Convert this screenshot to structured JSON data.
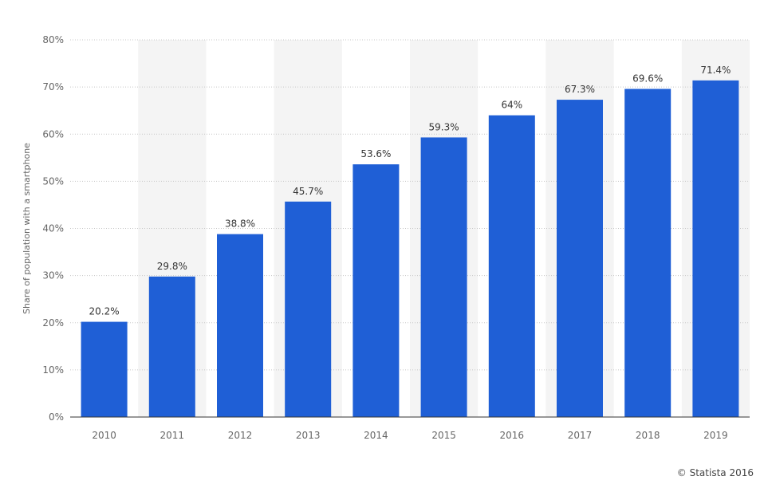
{
  "chart_data": {
    "type": "bar",
    "categories": [
      "2010",
      "2011",
      "2012",
      "2013",
      "2014",
      "2015",
      "2016",
      "2017",
      "2018",
      "2019"
    ],
    "values": [
      20.2,
      29.8,
      38.8,
      45.7,
      53.6,
      59.3,
      64,
      67.3,
      69.6,
      71.4
    ],
    "value_labels": [
      "20.2%",
      "29.8%",
      "38.8%",
      "45.7%",
      "53.6%",
      "59.3%",
      "64%",
      "67.3%",
      "69.6%",
      "71.4%"
    ],
    "ylabel": "Share of population with a smartphone",
    "xlabel": "",
    "ylim": [
      0,
      80
    ],
    "yticks": [
      0,
      10,
      20,
      30,
      40,
      50,
      60,
      70,
      80
    ],
    "ytick_labels": [
      "0%",
      "10%",
      "20%",
      "30%",
      "40%",
      "50%",
      "60%",
      "70%",
      "80%"
    ],
    "grid": true,
    "legend": false,
    "colors": {
      "bar": "#1f5fd6",
      "band": "#f4f4f4",
      "grid": "#c8c8c8",
      "axis": "#333333"
    }
  },
  "footer": {
    "credit": "© Statista 2016"
  }
}
